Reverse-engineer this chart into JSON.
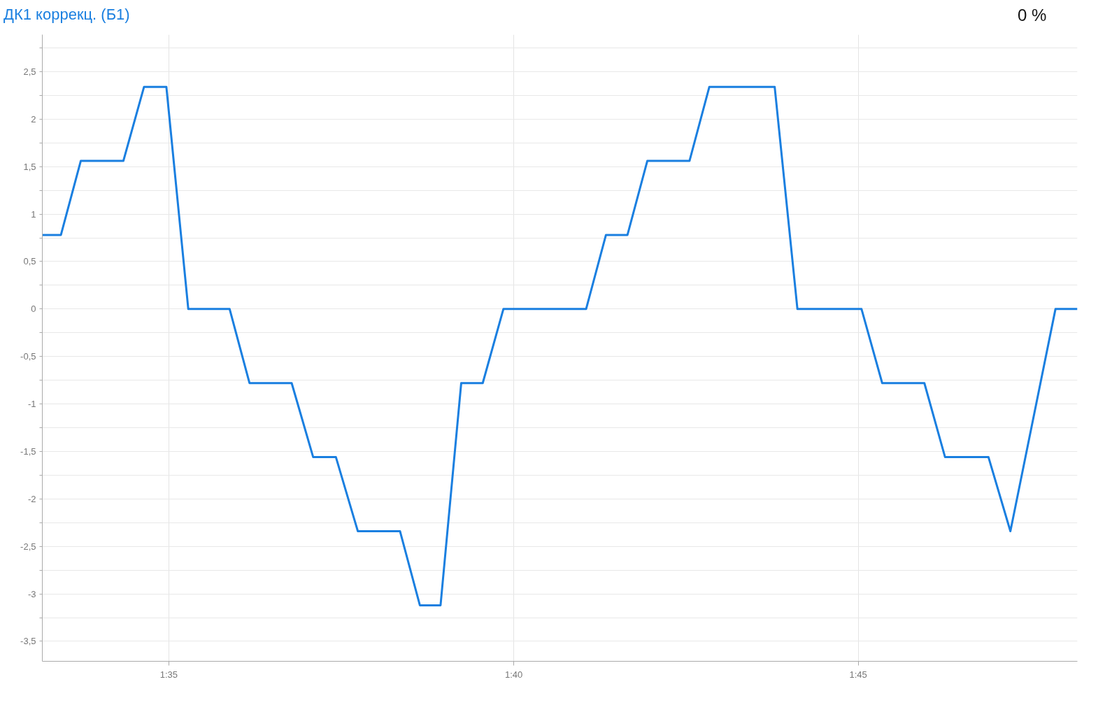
{
  "chart_data": {
    "type": "line",
    "title": "ДК1 коррекц. (Б1)",
    "annotations": [
      "0 %"
    ],
    "x": [
      1.5527,
      1.5572,
      1.562,
      1.5723,
      1.5773,
      1.5827,
      1.588,
      1.598,
      1.6028,
      1.613,
      1.6182,
      1.6237,
      1.629,
      1.6392,
      1.644,
      1.649,
      1.654,
      1.6592,
      1.6642,
      1.6842,
      1.689,
      1.6942,
      1.699,
      1.7092,
      1.714,
      1.7298,
      1.7353,
      1.7508,
      1.7558,
      1.766,
      1.771,
      1.7815,
      1.7868,
      1.7977,
      1.803
    ],
    "series": [
      {
        "color": "#1a7fe0",
        "values": [
          0.78,
          0.78,
          1.56,
          1.56,
          2.34,
          2.34,
          0,
          0,
          -0.78,
          -0.78,
          -1.56,
          -1.56,
          -2.34,
          -2.34,
          -3.12,
          -3.12,
          -0.78,
          -0.78,
          0,
          0,
          0.78,
          0.78,
          1.56,
          1.56,
          2.34,
          2.34,
          0,
          0,
          -0.78,
          -0.78,
          -1.56,
          -1.56,
          -2.34,
          0,
          0
        ]
      }
    ],
    "xlim": [
      1.5527,
      1.803
    ],
    "xticks": [
      {
        "value": 1.5833,
        "label": "1:35"
      },
      {
        "value": 1.6667,
        "label": "1:40"
      },
      {
        "value": 1.75,
        "label": "1:45"
      }
    ],
    "ylim": [
      -3.71,
      2.89
    ],
    "yticks": [
      {
        "value": -3.5,
        "label": "-3,5"
      },
      {
        "value": -3.25,
        "label": null
      },
      {
        "value": -3,
        "label": "-3"
      },
      {
        "value": -2.75,
        "label": null
      },
      {
        "value": -2.5,
        "label": "-2,5"
      },
      {
        "value": -2.25,
        "label": null
      },
      {
        "value": -2,
        "label": "-2"
      },
      {
        "value": -1.75,
        "label": null
      },
      {
        "value": -1.5,
        "label": "-1,5"
      },
      {
        "value": -1.25,
        "label": null
      },
      {
        "value": -1,
        "label": "-1"
      },
      {
        "value": -0.75,
        "label": null
      },
      {
        "value": -0.5,
        "label": "-0,5"
      },
      {
        "value": -0.25,
        "label": null
      },
      {
        "value": 0,
        "label": "0"
      },
      {
        "value": 0.25,
        "label": null
      },
      {
        "value": 0.5,
        "label": "0,5"
      },
      {
        "value": 0.75,
        "label": null
      },
      {
        "value": 1,
        "label": "1"
      },
      {
        "value": 1.25,
        "label": null
      },
      {
        "value": 1.5,
        "label": "1,5"
      },
      {
        "value": 1.75,
        "label": null
      },
      {
        "value": 2,
        "label": "2"
      },
      {
        "value": 2.25,
        "label": null
      },
      {
        "value": 2.5,
        "label": "2,5"
      },
      {
        "value": 2.75,
        "label": null
      }
    ],
    "grid": true,
    "marker": "none",
    "line_style": "solid"
  }
}
